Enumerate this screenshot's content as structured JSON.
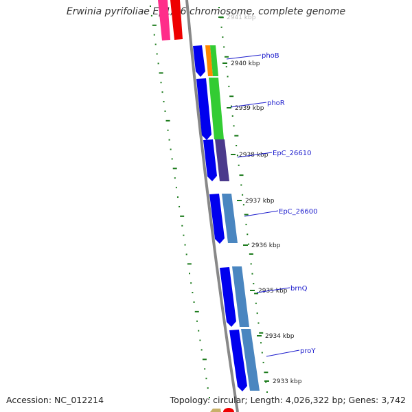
{
  "title": "Erwinia pyrifoliae Ep1/96 chromosome, complete genome",
  "footer": {
    "accession": "Accession: NC_012214",
    "topology": "Topology: circular; Length: 4,026,322 bp; Genes: 3,742"
  },
  "scale_labels": [
    "2941 kbp",
    "2940 kbp",
    "2939 kbp",
    "2938 kbp",
    "2937 kbp",
    "2936 kbp",
    "2935 kbp",
    "2934 kbp",
    "2933 kbp"
  ],
  "gene_labels": [
    "phoB",
    "phoR",
    "EpC_26610",
    "EpC_26600",
    "brnQ",
    "proY"
  ],
  "colors": {
    "backbone": "#888888",
    "tick": "#1a7a1a",
    "gene_label": "#1a1acc",
    "cds_blue": "#0000ee",
    "cog_green": "#33cc33",
    "cog_orange": "#ff8800",
    "cog_purple": "#4b3a8c",
    "cog_steel": "#4a86c0",
    "rna_red": "#ee0000",
    "rna_pink": "#ff2d8a"
  }
}
